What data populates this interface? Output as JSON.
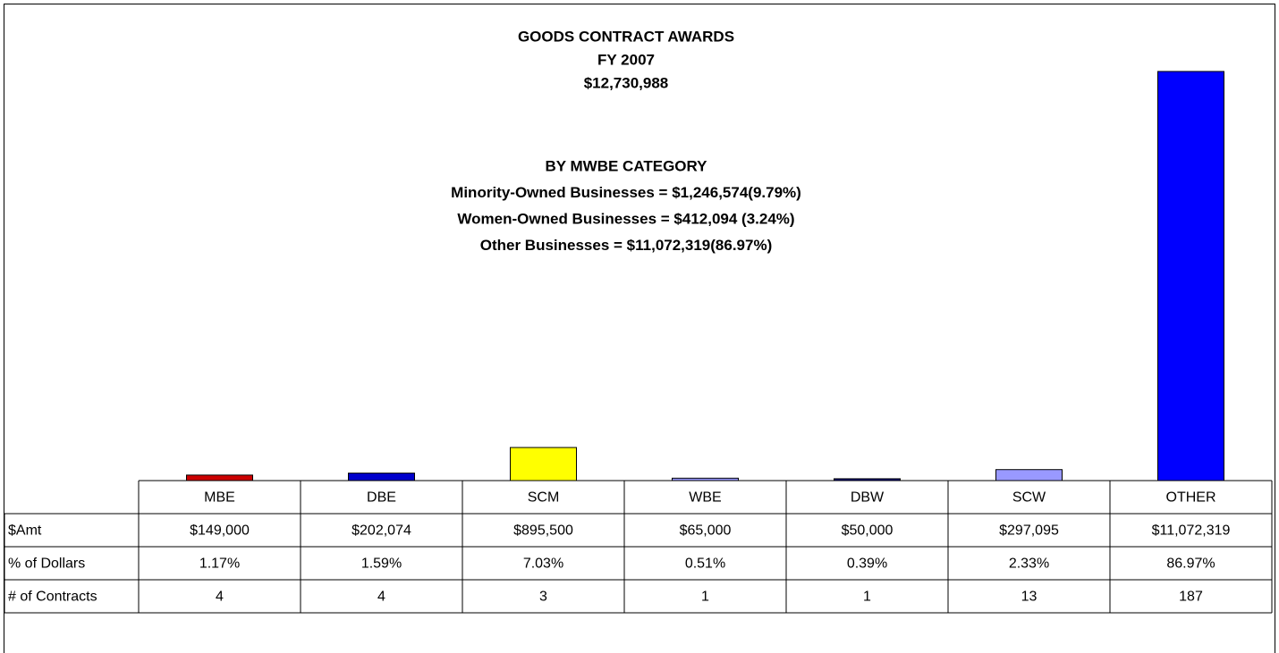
{
  "chart_data": {
    "type": "bar",
    "title": [
      "GOODS CONTRACT AWARDS",
      "FY 2007",
      "$12,730,988"
    ],
    "subtitle": [
      "BY MWBE CATEGORY",
      "Minority-Owned Businesses = $1,246,574(9.79%)",
      "Women-Owned Businesses = $412,094 (3.24%)",
      "Other Businesses = $11,072,319(86.97%)"
    ],
    "categories": [
      "MBE",
      "DBE",
      "SCM",
      "WBE",
      "DBW",
      "SCW",
      "OTHER"
    ],
    "colors": [
      "#cc0000",
      "#0000cc",
      "#ffff00",
      "#9999ff",
      "#000080",
      "#9999ff",
      "#0000ff"
    ],
    "series": [
      {
        "name": "$Amt",
        "values": [
          149000,
          202074,
          895500,
          65000,
          50000,
          297095,
          11072319
        ],
        "value_labels": [
          "$149,000",
          "$202,074",
          "$895,500",
          "$65,000",
          "$50,000",
          "$297,095",
          "$11,072,319"
        ]
      },
      {
        "name": "% of Dollars",
        "values": [
          1.17,
          1.59,
          7.03,
          0.51,
          0.39,
          2.33,
          86.97
        ],
        "value_labels": [
          "1.17%",
          "1.59%",
          "7.03%",
          "0.51%",
          "0.39%",
          "2.33%",
          "86.97%"
        ]
      },
      {
        "name": "# of Contracts",
        "values": [
          4,
          4,
          3,
          1,
          1,
          13,
          187
        ]
      }
    ]
  }
}
